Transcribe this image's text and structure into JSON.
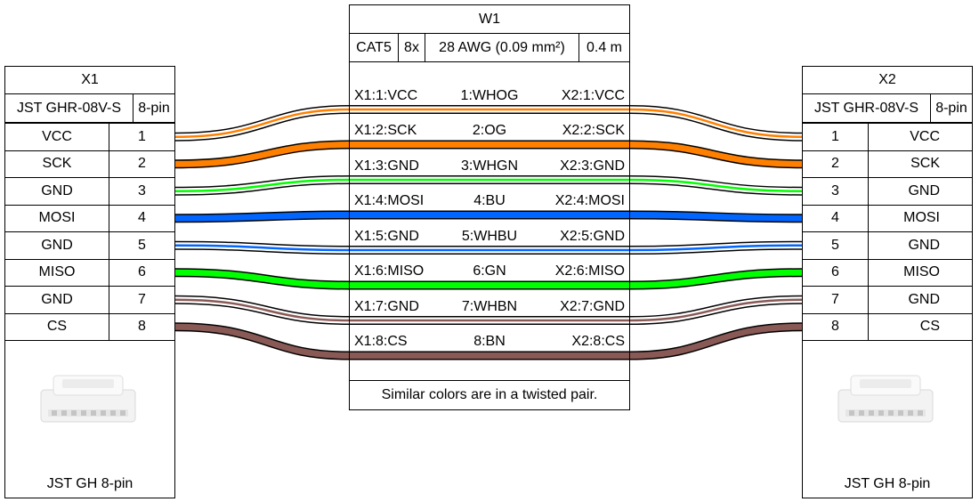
{
  "cable": {
    "name": "W1",
    "type": "CAT5",
    "count": "8x",
    "gauge": "28 AWG (0.09 mm²)",
    "length": "0.4 m",
    "note": "Similar colors are in a twisted pair.",
    "wires": [
      {
        "left": "X1:1:VCC",
        "mid": "1:WHOG",
        "right": "X2:1:VCC",
        "colors": [
          "#ffffff",
          "#ff8000"
        ]
      },
      {
        "left": "X1:2:SCK",
        "mid": "2:OG",
        "right": "X2:2:SCK",
        "colors": [
          "#ff8000"
        ]
      },
      {
        "left": "X1:3:GND",
        "mid": "3:WHGN",
        "right": "X2:3:GND",
        "colors": [
          "#ffffff",
          "#00ff00"
        ]
      },
      {
        "left": "X1:4:MOSI",
        "mid": "4:BU",
        "right": "X2:4:MOSI",
        "colors": [
          "#0066ff"
        ]
      },
      {
        "left": "X1:5:GND",
        "mid": "5:WHBU",
        "right": "X2:5:GND",
        "colors": [
          "#ffffff",
          "#0066ff"
        ]
      },
      {
        "left": "X1:6:MISO",
        "mid": "6:GN",
        "right": "X2:6:MISO",
        "colors": [
          "#00ff00"
        ]
      },
      {
        "left": "X1:7:GND",
        "mid": "7:WHBN",
        "right": "X2:7:GND",
        "colors": [
          "#ffffff",
          "#895956"
        ]
      },
      {
        "left": "X1:8:CS",
        "mid": "8:BN",
        "right": "X2:8:CS",
        "colors": [
          "#895956"
        ]
      }
    ]
  },
  "x1": {
    "name": "X1",
    "part": "JST GHR-08V-S",
    "pins_label": "8-pin",
    "caption": "JST GH 8-pin",
    "pins": [
      {
        "label": "VCC",
        "num": "1"
      },
      {
        "label": "SCK",
        "num": "2"
      },
      {
        "label": "GND",
        "num": "3"
      },
      {
        "label": "MOSI",
        "num": "4"
      },
      {
        "label": "GND",
        "num": "5"
      },
      {
        "label": "MISO",
        "num": "6"
      },
      {
        "label": "GND",
        "num": "7"
      },
      {
        "label": "CS",
        "num": "8"
      }
    ]
  },
  "x2": {
    "name": "X2",
    "part": "JST GHR-08V-S",
    "pins_label": "8-pin",
    "caption": "JST GH 8-pin",
    "pins": [
      {
        "label": "VCC",
        "num": "1"
      },
      {
        "label": "SCK",
        "num": "2"
      },
      {
        "label": "GND",
        "num": "3"
      },
      {
        "label": "MOSI",
        "num": "4"
      },
      {
        "label": "GND",
        "num": "5"
      },
      {
        "label": "MISO",
        "num": "6"
      },
      {
        "label": "GND",
        "num": "7"
      },
      {
        "label": "CS",
        "num": "8"
      }
    ]
  }
}
